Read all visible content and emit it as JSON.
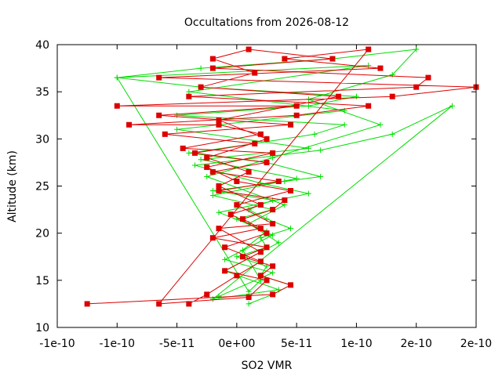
{
  "chart_data": {
    "type": "line",
    "title": "Occultations from 2026-08-12",
    "xlabel": "SO2 VMR",
    "ylabel": "Altitude (km)",
    "xlim": [
      -1.5e-10,
      2e-10
    ],
    "ylim": [
      10,
      40
    ],
    "x_tick_values": [
      -1.5e-10,
      -1e-10,
      -5e-11,
      0,
      5e-11,
      1e-10,
      1.5e-10,
      2e-10
    ],
    "x_tick_labels": [
      "-1e-10",
      "-1e-10",
      "-5e-11",
      "0e+00",
      "5e-11",
      "1e-10",
      "2e-10",
      "2e-10"
    ],
    "y_tick_values": [
      10,
      15,
      20,
      25,
      30,
      35,
      40
    ],
    "y_tick_labels": [
      "10",
      "15",
      "20",
      "25",
      "30",
      "35",
      "40"
    ],
    "grid": false,
    "legend": "none",
    "series": [
      {
        "color": "#00dd00",
        "marker": "plus",
        "points": [
          [
            1e-11,
            12.5
          ],
          [
            3e-11,
            13.5
          ],
          [
            4.5e-11,
            14.5
          ],
          [
            2e-11,
            15.5
          ],
          [
            2.5e-11,
            16.5
          ],
          [
            0.0,
            17.5
          ],
          [
            2.5e-11,
            18.5
          ],
          [
            2e-11,
            19.5
          ],
          [
            4.5e-11,
            20.5
          ],
          [
            2.5e-11,
            21.5
          ],
          [
            1e-11,
            22.5
          ],
          [
            3e-11,
            23.5
          ],
          [
            -2e-11,
            24.5
          ],
          [
            4e-11,
            25.5
          ],
          [
            7e-11,
            26.0
          ],
          [
            2.5e-11,
            27.5
          ],
          [
            -4e-11,
            28.5
          ],
          [
            1.5e-11,
            29.5
          ],
          [
            6.5e-11,
            30.5
          ],
          [
            9e-11,
            31.5
          ],
          [
            -5e-11,
            32.5
          ],
          [
            6e-11,
            33.5
          ],
          [
            1e-10,
            34.5
          ],
          [
            -3e-11,
            35.5
          ],
          [
            -1e-10,
            36.5
          ],
          [
            -3e-11,
            37.5
          ],
          [
            8e-11,
            38.5
          ],
          [
            1.5e-10,
            39.5
          ],
          [
            1.3e-10,
            36.8
          ],
          [
            6e-11,
            34.2
          ],
          [
            1.2e-10,
            31.5
          ],
          [
            3e-11,
            28.0
          ],
          [
            -2.5e-11,
            26.0
          ],
          [
            4e-11,
            23.0
          ],
          [
            1e-11,
            21.0
          ],
          [
            3.5e-11,
            19.0
          ],
          [
            -1e-11,
            16.0
          ],
          [
            3.5e-11,
            14.0
          ],
          [
            -2e-11,
            13.0
          ],
          [
            1.8e-10,
            33.5
          ],
          [
            1.3e-10,
            30.5
          ],
          [
            7e-11,
            28.8
          ],
          [
            -3.5e-11,
            27.2
          ],
          [
            2e-11,
            25.3
          ],
          [
            6e-11,
            24.2
          ],
          [
            -1.5e-11,
            22.2
          ],
          [
            2.5e-11,
            20.2
          ],
          [
            5e-12,
            18.2
          ],
          [
            2e-11,
            15.0
          ],
          [
            1e-11,
            13.8
          ],
          [
            -1e-10,
            36.5
          ],
          [
            1.1e-10,
            37.8
          ],
          [
            -4e-11,
            35.0
          ],
          [
            9e-11,
            33.0
          ],
          [
            -5e-11,
            31.0
          ],
          [
            6e-11,
            29.0
          ],
          [
            -3e-11,
            27.8
          ],
          [
            5e-11,
            25.8
          ],
          [
            -2e-11,
            24.0
          ],
          [
            3e-11,
            22.5
          ],
          [
            0.0,
            21.5
          ],
          [
            3e-11,
            19.8
          ],
          [
            -1e-11,
            17.2
          ],
          [
            3e-11,
            15.8
          ],
          [
            -1.5e-11,
            13.3
          ]
        ]
      },
      {
        "color": "#dd0000",
        "marker": "square",
        "points": [
          [
            -1.25e-10,
            12.5
          ],
          [
            3e-11,
            13.5
          ],
          [
            4.5e-11,
            14.5
          ],
          [
            2e-11,
            15.5
          ],
          [
            3e-11,
            16.5
          ],
          [
            5e-12,
            17.5
          ],
          [
            2.5e-11,
            18.5
          ],
          [
            -2e-11,
            19.5
          ],
          [
            2e-11,
            20.5
          ],
          [
            5e-12,
            21.5
          ],
          [
            3e-11,
            22.5
          ],
          [
            4e-11,
            23.5
          ],
          [
            -1.5e-11,
            24.5
          ],
          [
            3.5e-11,
            25.5
          ],
          [
            -2e-11,
            26.5
          ],
          [
            2.5e-11,
            27.5
          ],
          [
            -3.5e-11,
            28.5
          ],
          [
            1.5e-11,
            29.5
          ],
          [
            -6e-11,
            30.5
          ],
          [
            4.5e-11,
            31.5
          ],
          [
            -6.5e-11,
            32.5
          ],
          [
            5e-11,
            33.5
          ],
          [
            -1e-10,
            33.5
          ],
          [
            1.3e-10,
            34.5
          ],
          [
            2e-10,
            35.5
          ],
          [
            -6.5e-11,
            36.5
          ],
          [
            1.2e-10,
            37.5
          ],
          [
            4e-11,
            38.5
          ],
          [
            1.1e-10,
            39.5
          ],
          [
            -6.5e-11,
            12.5
          ],
          [
            1e-11,
            13.2
          ],
          [
            2.5e-11,
            15.0
          ],
          [
            -1e-11,
            16.0
          ],
          [
            2e-11,
            18.0
          ],
          [
            -1.5e-11,
            20.5
          ],
          [
            3e-11,
            21.0
          ],
          [
            0.0,
            23.0
          ],
          [
            4.5e-11,
            24.5
          ],
          [
            0.0,
            25.5
          ],
          [
            -2.5e-11,
            27.0
          ],
          [
            3e-11,
            28.5
          ],
          [
            -4.5e-11,
            29.0
          ],
          [
            2e-11,
            30.5
          ],
          [
            -1.5e-11,
            31.5
          ],
          [
            -9e-11,
            31.5
          ],
          [
            5e-11,
            32.5
          ],
          [
            1.1e-10,
            33.5
          ],
          [
            -4e-11,
            34.5
          ],
          [
            1.5e-10,
            35.5
          ],
          [
            1.6e-10,
            36.5
          ],
          [
            -2e-11,
            37.5
          ],
          [
            8e-11,
            38.5
          ],
          [
            1e-11,
            39.5
          ],
          [
            -2e-11,
            38.5
          ],
          [
            1.5e-11,
            37.0
          ],
          [
            -3e-11,
            35.5
          ],
          [
            8.5e-11,
            34.5
          ],
          [
            -1.5e-11,
            32.0
          ],
          [
            2.5e-11,
            30.0
          ],
          [
            -2.5e-11,
            28.0
          ],
          [
            1e-11,
            26.5
          ],
          [
            -1.5e-11,
            25.0
          ],
          [
            2e-11,
            23.0
          ],
          [
            -5e-12,
            22.0
          ],
          [
            2.5e-11,
            20.0
          ],
          [
            -1e-11,
            18.5
          ],
          [
            2e-11,
            17.0
          ],
          [
            0.0,
            15.5
          ],
          [
            -2.5e-11,
            13.5
          ],
          [
            -4e-11,
            12.5
          ]
        ]
      }
    ]
  }
}
